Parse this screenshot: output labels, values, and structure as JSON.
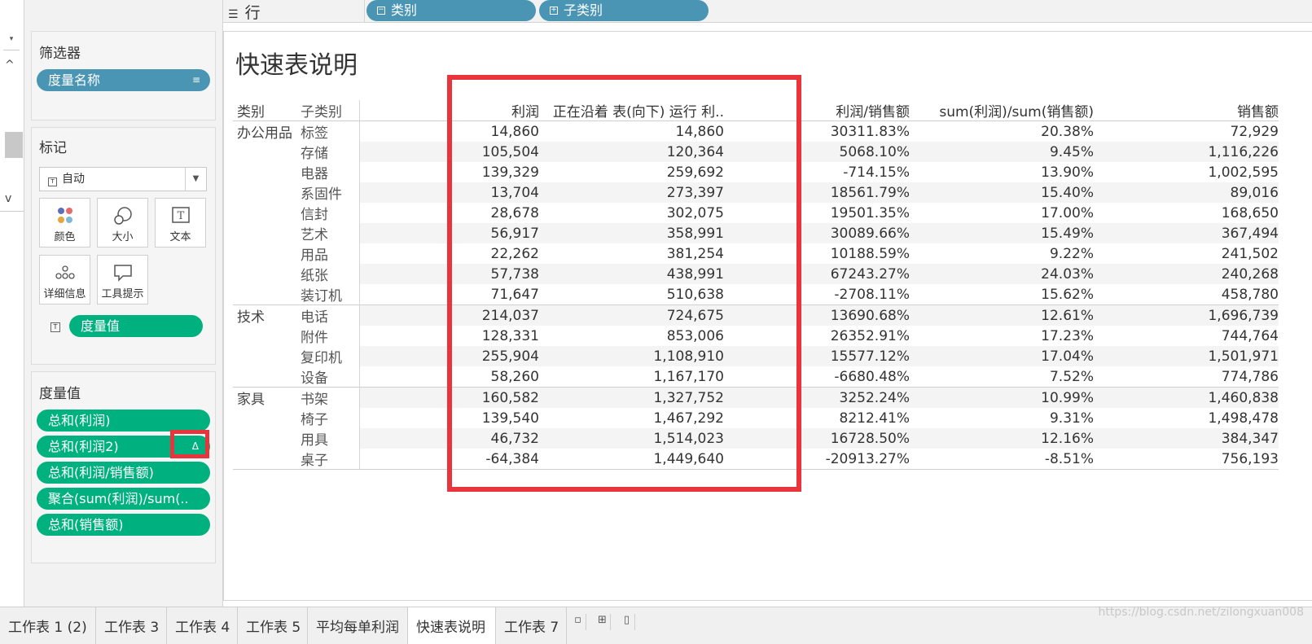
{
  "shelf": {
    "rows_label": "行",
    "pills": [
      "类别",
      "子类别"
    ]
  },
  "filters": {
    "title": "筛选器",
    "pill": "度量名称"
  },
  "marks": {
    "title": "标记",
    "type_value": "自动",
    "buttons": [
      "颜色",
      "大小",
      "文本",
      "详细信息",
      "工具提示"
    ],
    "measure_pill": "度量值"
  },
  "measure_values": {
    "title": "度量值",
    "pills": [
      "总和(利润)",
      "总和(利润2)",
      "总和(利润/销售额)",
      "聚合(sum(利润)/sum(..",
      "总和(销售额)"
    ],
    "delta_icon": "Δ"
  },
  "sheet": {
    "title": "快速表说明",
    "headers": [
      "类别",
      "子类别",
      "利润",
      "正在沿着 表(向下) 运行 利..",
      "利润/销售额",
      "sum(利润)/sum(销售额)",
      "销售额"
    ],
    "groups": [
      {
        "category": "办公用品",
        "rows": [
          [
            "标签",
            "14,860",
            "14,860",
            "30311.83%",
            "20.38%",
            "72,929"
          ],
          [
            "存储",
            "105,504",
            "120,364",
            "5068.10%",
            "9.45%",
            "1,116,226"
          ],
          [
            "电器",
            "139,329",
            "259,692",
            "-714.15%",
            "13.90%",
            "1,002,595"
          ],
          [
            "系固件",
            "13,704",
            "273,397",
            "18561.79%",
            "15.40%",
            "89,016"
          ],
          [
            "信封",
            "28,678",
            "302,075",
            "19501.35%",
            "17.00%",
            "168,650"
          ],
          [
            "艺术",
            "56,917",
            "358,991",
            "30089.66%",
            "15.49%",
            "367,494"
          ],
          [
            "用品",
            "22,262",
            "381,254",
            "10188.59%",
            "9.22%",
            "241,502"
          ],
          [
            "纸张",
            "57,738",
            "438,991",
            "67243.27%",
            "24.03%",
            "240,268"
          ],
          [
            "装订机",
            "71,647",
            "510,638",
            "-2708.11%",
            "15.62%",
            "458,780"
          ]
        ]
      },
      {
        "category": "技术",
        "rows": [
          [
            "电话",
            "214,037",
            "724,675",
            "13690.68%",
            "12.61%",
            "1,696,739"
          ],
          [
            "附件",
            "128,331",
            "853,006",
            "26352.91%",
            "17.23%",
            "744,764"
          ],
          [
            "复印机",
            "255,904",
            "1,108,910",
            "15577.12%",
            "17.04%",
            "1,501,971"
          ],
          [
            "设备",
            "58,260",
            "1,167,170",
            "-6680.48%",
            "7.52%",
            "774,786"
          ]
        ]
      },
      {
        "category": "家具",
        "rows": [
          [
            "书架",
            "160,582",
            "1,327,752",
            "3252.24%",
            "10.99%",
            "1,460,838"
          ],
          [
            "椅子",
            "139,540",
            "1,467,292",
            "8212.41%",
            "9.31%",
            "1,498,478"
          ],
          [
            "用具",
            "46,732",
            "1,514,023",
            "16728.50%",
            "12.16%",
            "384,347"
          ],
          [
            "桌子",
            "-64,384",
            "1,449,640",
            "-20913.27%",
            "-8.51%",
            "756,193"
          ]
        ]
      }
    ]
  },
  "tabs": {
    "items": [
      "工作表 1 (2)",
      "工作表 3",
      "工作表 4",
      "工作表 5",
      "平均每单利润",
      "快速表说明",
      "工作表 7"
    ],
    "active": "快速表说明",
    "icons": [
      "new-sheet-icon",
      "new-dashboard-icon",
      "new-story-icon"
    ]
  },
  "watermark": "https://blog.csdn.net/zilongxuan008",
  "colors": {
    "pill_blue": "#4a94b4",
    "pill_green": "#00b180",
    "highlight_red": "#e8343a"
  }
}
